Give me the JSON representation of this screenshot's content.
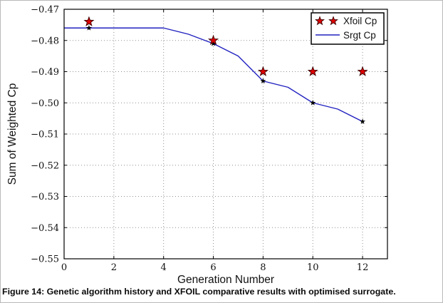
{
  "figure": {
    "caption": "Figure 14: Genetic algorithm history and XFOIL comparative results with optimised surrogate."
  },
  "colors": {
    "xfoil_star_fill": "#dd0000",
    "xfoil_star_edge": "#3a0000",
    "srgt_line": "#2222c0",
    "srgt_marker": "#000000",
    "grid": "#909090",
    "frame": "#000000",
    "legend_border": "#000000",
    "background": "#ffffff"
  },
  "chart_data": {
    "type": "line",
    "title": "",
    "xlabel": "Generation Number",
    "ylabel": "Sum of Weighted Cp",
    "xlim": [
      0,
      13
    ],
    "ylim": [
      -0.55,
      -0.47
    ],
    "xticks": [
      0,
      2,
      4,
      6,
      8,
      10,
      12
    ],
    "yticks": [
      -0.47,
      -0.48,
      -0.49,
      -0.5,
      -0.51,
      -0.52,
      -0.53,
      -0.54,
      -0.55
    ],
    "grid": true,
    "legend": {
      "position": "upper right",
      "entries": [
        {
          "label": "Xfoil Cp",
          "marker": "star",
          "series": "xfoil"
        },
        {
          "label": "Srgt Cp",
          "marker": "line",
          "series": "srgt"
        }
      ]
    },
    "series": [
      {
        "name": "Xfoil Cp",
        "id": "xfoil",
        "type": "scatter",
        "marker": "star",
        "x": [
          1,
          6,
          8,
          10,
          12
        ],
        "y": [
          -0.474,
          -0.48,
          -0.49,
          -0.49,
          -0.49
        ]
      },
      {
        "name": "Srgt Cp",
        "id": "srgt",
        "type": "line",
        "x": [
          0,
          1,
          2,
          3,
          4,
          5,
          6,
          7,
          8,
          9,
          10,
          11,
          12
        ],
        "y": [
          -0.476,
          -0.476,
          -0.476,
          -0.476,
          -0.476,
          -0.478,
          -0.481,
          -0.485,
          -0.493,
          -0.495,
          -0.5,
          -0.502,
          -0.506
        ],
        "marker_x": [
          1,
          6,
          8,
          10,
          12
        ],
        "marker": "star-small"
      }
    ]
  }
}
